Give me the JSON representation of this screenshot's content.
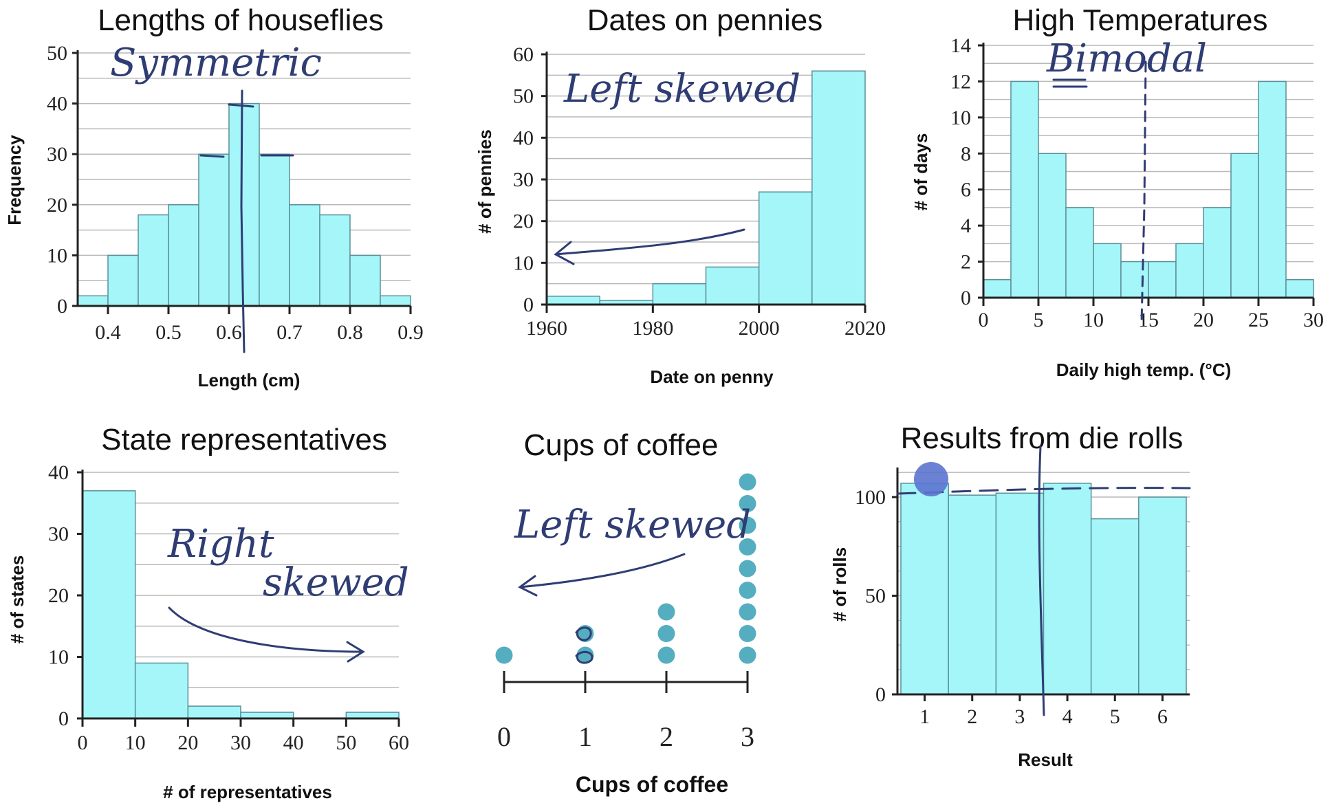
{
  "colors": {
    "bar_fill": "#a5f6f8",
    "bar_edge": "#5a8f99",
    "ink": "#2f3d74",
    "dot": "#55aec0"
  },
  "chart_data": [
    {
      "id": "houseflies",
      "type": "bar",
      "title": "Lengths of houseflies",
      "xlabel": "Length (cm)",
      "ylabel": "Frequency",
      "bin_edges": [
        0.35,
        0.4,
        0.45,
        0.5,
        0.55,
        0.6,
        0.65,
        0.7,
        0.75,
        0.8,
        0.85,
        0.9
      ],
      "values": [
        2,
        10,
        18,
        20,
        30,
        40,
        30,
        20,
        18,
        10,
        2
      ],
      "xlim": [
        0.35,
        0.9
      ],
      "ylim": [
        0,
        50
      ],
      "xticks": [
        0.4,
        0.5,
        0.6,
        0.7,
        0.8,
        0.9
      ],
      "xtick_labels": [
        "0.4",
        "0.5",
        "0.6",
        "0.7",
        "0.8",
        "0.9"
      ],
      "yticks": [
        0,
        10,
        20,
        30,
        40,
        50
      ],
      "grid": true,
      "annotation": "Symmetric"
    },
    {
      "id": "pennies",
      "type": "bar",
      "title": "Dates on pennies",
      "xlabel": "Date on penny",
      "ylabel": "# of pennies",
      "bin_edges": [
        1960,
        1970,
        1980,
        1990,
        2000,
        2010,
        2020
      ],
      "values": [
        2,
        1,
        5,
        9,
        27,
        56
      ],
      "xlim": [
        1960,
        2020
      ],
      "ylim": [
        0,
        60
      ],
      "xticks": [
        1960,
        1980,
        2000,
        2020
      ],
      "xtick_labels": [
        "1960",
        "1980",
        "2000",
        "2020"
      ],
      "yticks": [
        0,
        10,
        20,
        30,
        40,
        50,
        60
      ],
      "grid": true,
      "annotation": "Left skewed"
    },
    {
      "id": "temperatures",
      "type": "bar",
      "title": "High Temperatures",
      "xlabel": "Daily high temp. (°C)",
      "ylabel": "# of days",
      "bin_edges": [
        0,
        2.5,
        5,
        7.5,
        10,
        12.5,
        15,
        17.5,
        20,
        22.5,
        25,
        27.5,
        30
      ],
      "values": [
        1,
        12,
        8,
        5,
        3,
        2,
        2,
        3,
        5,
        8,
        12,
        1
      ],
      "xlim": [
        0,
        30
      ],
      "ylim": [
        0,
        14
      ],
      "xticks": [
        0,
        5,
        10,
        15,
        20,
        25,
        30
      ],
      "xtick_labels": [
        "0",
        "5",
        "10",
        "15",
        "20",
        "25",
        "30"
      ],
      "yticks": [
        0,
        2,
        4,
        6,
        8,
        10,
        12,
        14
      ],
      "grid": true,
      "annotation": "Bimodal"
    },
    {
      "id": "representatives",
      "type": "bar",
      "title": "State representatives",
      "xlabel": "# of representatives",
      "ylabel": "# of states",
      "bin_edges": [
        0,
        10,
        20,
        30,
        40,
        50,
        60
      ],
      "values": [
        37,
        9,
        2,
        1,
        0,
        1
      ],
      "xlim": [
        0,
        60
      ],
      "ylim": [
        0,
        40
      ],
      "xticks": [
        0,
        10,
        20,
        30,
        40,
        50,
        60
      ],
      "xtick_labels": [
        "0",
        "10",
        "20",
        "30",
        "40",
        "50",
        "60"
      ],
      "yticks": [
        0,
        10,
        20,
        30,
        40
      ],
      "grid": true,
      "annotation": [
        "Right",
        "skewed"
      ]
    },
    {
      "id": "coffee",
      "type": "scatter",
      "title": "Cups of coffee",
      "xlabel": "Cups of coffee",
      "ylabel": "",
      "categories": [
        "0",
        "1",
        "2",
        "3"
      ],
      "counts": [
        1,
        2,
        3,
        9
      ],
      "xlim": [
        0,
        3
      ],
      "grid": false,
      "annotation": "Left skewed"
    },
    {
      "id": "dice",
      "type": "bar",
      "title": "Results from die rolls",
      "xlabel": "Result",
      "ylabel": "# of rolls",
      "categories": [
        "1",
        "2",
        "3",
        "4",
        "5",
        "6"
      ],
      "values": [
        107,
        101,
        102,
        107,
        89,
        100
      ],
      "ylim": [
        0,
        115
      ],
      "yticks": [
        0,
        50,
        100
      ],
      "grid": true
    }
  ]
}
